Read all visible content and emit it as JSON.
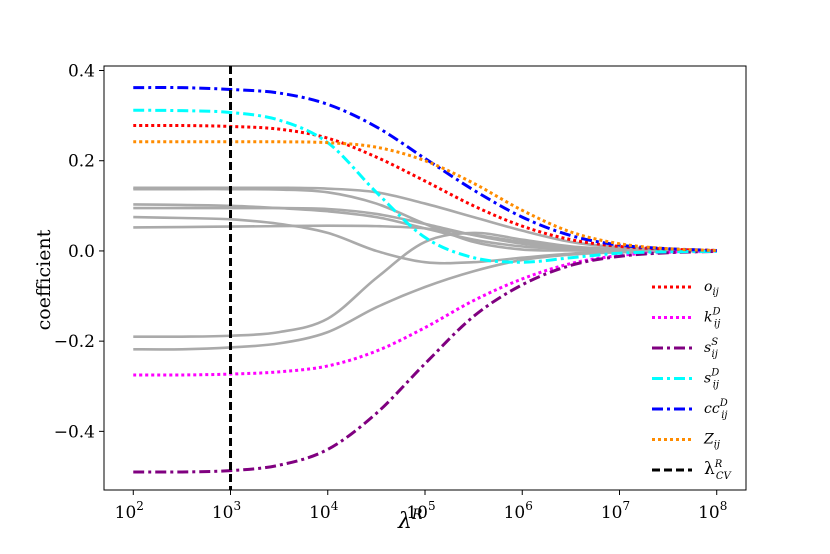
{
  "chart_data": {
    "type": "line",
    "xscale": "log",
    "xlabel": "λ",
    "xlabel_sup": "R",
    "ylabel": "coefficient",
    "xlim": [
      50,
      200000000
    ],
    "ylim": [
      -0.53,
      0.41
    ],
    "x_ticks": [
      {
        "value": 100,
        "label": "10",
        "exp": "2"
      },
      {
        "value": 1000,
        "label": "10",
        "exp": "3"
      },
      {
        "value": 10000,
        "label": "10",
        "exp": "4"
      },
      {
        "value": 100000,
        "label": "10",
        "exp": "5"
      },
      {
        "value": 1000000,
        "label": "10",
        "exp": "6"
      },
      {
        "value": 10000000,
        "label": "10",
        "exp": "7"
      },
      {
        "value": 100000000,
        "label": "10",
        "exp": "8"
      }
    ],
    "y_ticks": [
      {
        "value": 0.4,
        "label": "0.4"
      },
      {
        "value": 0.2,
        "label": "0.2"
      },
      {
        "value": 0.0,
        "label": "0.0"
      },
      {
        "value": -0.2,
        "label": "−0.2"
      },
      {
        "value": -0.4,
        "label": "−0.4"
      }
    ],
    "grid": false,
    "legend_position": "lower right",
    "vline": {
      "x": 1000,
      "color": "#000000",
      "style": "dashed",
      "legend": "λ",
      "legend_sup": "R",
      "legend_sub": "CV"
    },
    "x": [
      100,
      316,
      1000,
      3162,
      10000,
      31623,
      100000,
      316228,
      1000000,
      3162278,
      10000000,
      31622777,
      100000000
    ],
    "series": [
      {
        "legend": "o",
        "sub": "ij",
        "sup": "",
        "color": "#ff0000",
        "style": "dotted",
        "values": [
          0.278,
          0.278,
          0.276,
          0.27,
          0.25,
          0.208,
          0.155,
          0.1,
          0.055,
          0.025,
          0.01,
          0.004,
          0.001
        ]
      },
      {
        "legend": "k",
        "sub": "ij",
        "sup": "D",
        "color": "#ff00ff",
        "style": "dotted",
        "values": [
          -0.275,
          -0.275,
          -0.273,
          -0.268,
          -0.255,
          -0.222,
          -0.17,
          -0.11,
          -0.062,
          -0.028,
          -0.01,
          -0.003,
          -0.001
        ]
      },
      {
        "legend": "s",
        "sub": "ij",
        "sup": "S",
        "color": "#800080",
        "style": "dashdot",
        "values": [
          -0.49,
          -0.49,
          -0.487,
          -0.475,
          -0.44,
          -0.36,
          -0.25,
          -0.145,
          -0.075,
          -0.032,
          -0.012,
          -0.004,
          -0.001
        ]
      },
      {
        "legend": "s",
        "sub": "ij",
        "sup": "D",
        "color": "#00ffff",
        "style": "dashdot",
        "values": [
          0.312,
          0.311,
          0.307,
          0.29,
          0.24,
          0.13,
          0.03,
          -0.015,
          -0.025,
          -0.015,
          -0.005,
          -0.002,
          -0.001
        ]
      },
      {
        "legend": "cc",
        "sub": "ij",
        "sup": "D",
        "color": "#0000ff",
        "style": "dashdot",
        "values": [
          0.362,
          0.362,
          0.358,
          0.35,
          0.325,
          0.275,
          0.205,
          0.135,
          0.075,
          0.034,
          0.013,
          0.005,
          0.001
        ]
      },
      {
        "legend": "Z",
        "sub": "ij",
        "sup": "",
        "color": "#ff8c00",
        "style": "dotted",
        "values": [
          0.242,
          0.242,
          0.242,
          0.242,
          0.24,
          0.23,
          0.2,
          0.15,
          0.09,
          0.042,
          0.016,
          0.005,
          0.001
        ]
      },
      {
        "color": "#aaaaaa",
        "style": "solid",
        "values": [
          0.14,
          0.14,
          0.14,
          0.14,
          0.138,
          0.13,
          0.105,
          0.075,
          0.045,
          0.02,
          0.008,
          0.003,
          0.001
        ]
      },
      {
        "color": "#aaaaaa",
        "style": "solid",
        "values": [
          0.137,
          0.137,
          0.137,
          0.136,
          0.13,
          0.105,
          0.06,
          0.02,
          0.003,
          0.001,
          0.0,
          0.0,
          0.0
        ]
      },
      {
        "color": "#aaaaaa",
        "style": "solid",
        "values": [
          0.103,
          0.102,
          0.1,
          0.095,
          0.088,
          0.075,
          0.05,
          0.025,
          0.01,
          0.004,
          0.001,
          0.0,
          0.0
        ]
      },
      {
        "color": "#aaaaaa",
        "style": "solid",
        "values": [
          0.095,
          0.095,
          0.095,
          0.095,
          0.093,
          0.082,
          0.06,
          0.035,
          0.016,
          0.006,
          0.002,
          0.001,
          0.0
        ]
      },
      {
        "color": "#aaaaaa",
        "style": "solid",
        "values": [
          0.075,
          0.073,
          0.07,
          0.06,
          0.04,
          0.0,
          -0.025,
          -0.025,
          -0.015,
          -0.006,
          -0.002,
          -0.001,
          0.0
        ]
      },
      {
        "color": "#aaaaaa",
        "style": "solid",
        "values": [
          0.052,
          0.053,
          0.054,
          0.055,
          0.056,
          0.055,
          0.05,
          0.036,
          0.02,
          0.008,
          0.003,
          0.001,
          0.0
        ]
      },
      {
        "color": "#aaaaaa",
        "style": "solid",
        "values": [
          -0.19,
          -0.19,
          -0.188,
          -0.18,
          -0.15,
          -0.06,
          0.02,
          0.04,
          0.025,
          0.01,
          0.004,
          0.001,
          0.0
        ]
      },
      {
        "color": "#aaaaaa",
        "style": "solid",
        "values": [
          -0.218,
          -0.218,
          -0.214,
          -0.205,
          -0.18,
          -0.125,
          -0.08,
          -0.045,
          -0.02,
          -0.008,
          -0.003,
          -0.001,
          0.0
        ]
      }
    ]
  }
}
